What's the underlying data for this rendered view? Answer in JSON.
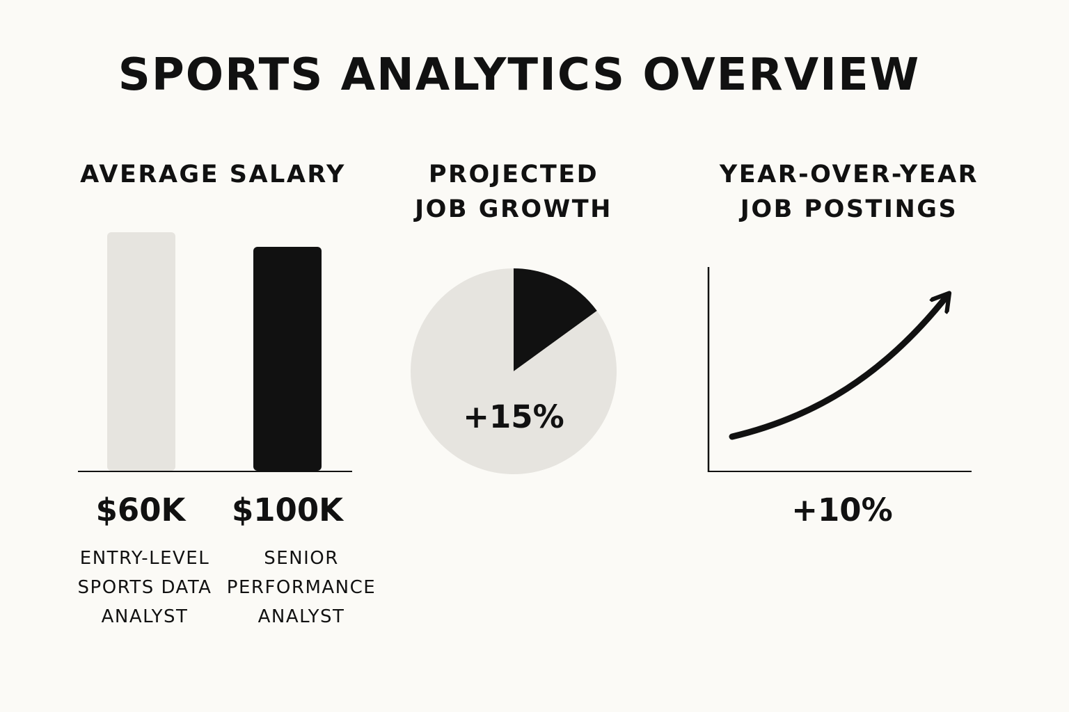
{
  "title": "SPORTS ANALYTICS OVERVIEW",
  "colors": {
    "background": "#fbfaf6",
    "light_fill": "#e6e4df",
    "dark_fill": "#111111",
    "axis": "#111111"
  },
  "chart_data": [
    {
      "type": "bar",
      "title": "AVERAGE SALARY",
      "categories": [
        "ENTRY-LEVEL SPORTS DATA ANALYST",
        "SENIOR PERFORMANCE ANALYST"
      ],
      "category_lines": [
        [
          "ENTRY-LEVEL",
          "SPORTS DATA",
          "ANALYST"
        ],
        [
          "SENIOR",
          "PERFORMANCE",
          "ANALYST"
        ]
      ],
      "values": [
        60000,
        100000
      ],
      "value_labels": [
        "$60K",
        "$100K"
      ],
      "bar_colors": [
        "#e6e4df",
        "#111111"
      ],
      "xlabel": "",
      "ylabel": ""
    },
    {
      "type": "pie",
      "title_lines": [
        "PROJECTED",
        "JOB GROWTH"
      ],
      "values": [
        15,
        85
      ],
      "slice_colors": [
        "#111111",
        "#e6e4df"
      ],
      "value_label": "+15%"
    },
    {
      "type": "line",
      "title_lines": [
        "YEAR-OVER-YEAR",
        "JOB POSTINGS"
      ],
      "trend": "increasing",
      "value_label": "+10%",
      "xlabel": "",
      "ylabel": ""
    }
  ]
}
